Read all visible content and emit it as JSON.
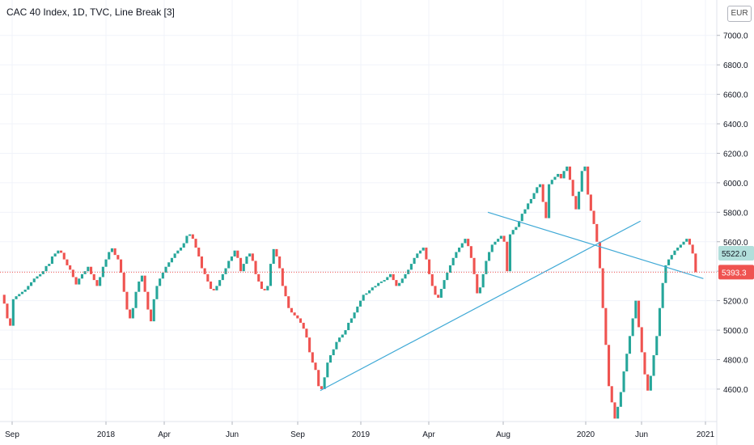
{
  "header": {
    "title": "CAC 40 Index, 1D, TVC, Line Break [3]"
  },
  "price_axis": {
    "currency": "EUR"
  },
  "colors": {
    "up": "#26a69a",
    "down": "#ef5350",
    "grid": "#f0f3fa",
    "trendline": "#3fa9d6",
    "last_price_line": "#ef5350",
    "prev_close_label": "#b2dfdb"
  },
  "chart_data": {
    "type": "line_break",
    "title": "CAC 40 Index, 1D, TVC, Line Break [3]",
    "xlabel": "",
    "ylabel": "",
    "ylim": [
      4380,
      7240
    ],
    "x_ticks": [
      "Sep",
      "2018",
      "Apr",
      "Jun",
      "Sep",
      "2019",
      "Apr",
      "Aug",
      "2020",
      "Jun",
      "2021"
    ],
    "y_ticks": [
      "4600.0",
      "4800.0",
      "5000.0",
      "5200.0",
      "5400.0",
      "5600.0",
      "5800.0",
      "6000.0",
      "6200.0",
      "6400.0",
      "6600.0",
      "6800.0",
      "7000.0"
    ],
    "last_price": 5393.3,
    "last_price_label": "5393.3",
    "prev_close": 5522.0,
    "prev_close_label": "5522.0",
    "lines_count": 3,
    "closes": [
      5240,
      5180,
      5080,
      5030,
      5210,
      5230,
      5245,
      5260,
      5275,
      5300,
      5325,
      5350,
      5365,
      5380,
      5400,
      5435,
      5450,
      5500,
      5520,
      5540,
      5525,
      5480,
      5440,
      5410,
      5360,
      5310,
      5350,
      5380,
      5400,
      5430,
      5380,
      5340,
      5300,
      5360,
      5430,
      5480,
      5530,
      5555,
      5510,
      5480,
      5390,
      5260,
      5140,
      5080,
      5150,
      5260,
      5330,
      5370,
      5260,
      5140,
      5060,
      5210,
      5300,
      5350,
      5390,
      5430,
      5460,
      5490,
      5520,
      5540,
      5560,
      5590,
      5640,
      5650,
      5620,
      5560,
      5500,
      5420,
      5380,
      5330,
      5280,
      5270,
      5300,
      5340,
      5380,
      5420,
      5470,
      5500,
      5540,
      5490,
      5400,
      5450,
      5500,
      5520,
      5470,
      5380,
      5330,
      5280,
      5270,
      5300,
      5450,
      5550,
      5500,
      5420,
      5300,
      5230,
      5150,
      5120,
      5100,
      5080,
      5050,
      5010,
      4950,
      4850,
      4780,
      4730,
      4620,
      4600,
      4680,
      4780,
      4830,
      4870,
      4920,
      4950,
      4970,
      5000,
      5050,
      5080,
      5120,
      5160,
      5200,
      5240,
      5250,
      5270,
      5290,
      5300,
      5320,
      5330,
      5340,
      5360,
      5380,
      5340,
      5300,
      5320,
      5350,
      5380,
      5410,
      5450,
      5490,
      5520,
      5540,
      5560,
      5480,
      5380,
      5300,
      5240,
      5220,
      5280,
      5340,
      5390,
      5440,
      5490,
      5530,
      5560,
      5590,
      5620,
      5570,
      5490,
      5380,
      5250,
      5290,
      5380,
      5470,
      5530,
      5580,
      5600,
      5620,
      5640,
      5600,
      5400,
      5650,
      5680,
      5700,
      5740,
      5790,
      5820,
      5860,
      5890,
      5930,
      5970,
      5990,
      5870,
      5760,
      5990,
      6020,
      6040,
      6060,
      6030,
      6080,
      6110,
      6020,
      5910,
      5820,
      5940,
      6080,
      6110,
      5920,
      5810,
      5720,
      5600,
      5420,
      5150,
      4900,
      4620,
      4510,
      4400,
      4480,
      4580,
      4720,
      4840,
      4960,
      5080,
      5200,
      5020,
      4850,
      4700,
      4590,
      4690,
      4830,
      4960,
      5150,
      5320,
      5440,
      5480,
      5510,
      5540,
      5560,
      5580,
      5600,
      5620,
      5580,
      5520,
      5393.3
    ],
    "trendlines": [
      {
        "start": {
          "i": 107,
          "v": 4590
        },
        "end": {
          "i": 214,
          "v": 5740
        }
      },
      {
        "start": {
          "i": 163,
          "v": 5800
        },
        "end": {
          "i": 235,
          "v": 5350
        }
      }
    ]
  }
}
